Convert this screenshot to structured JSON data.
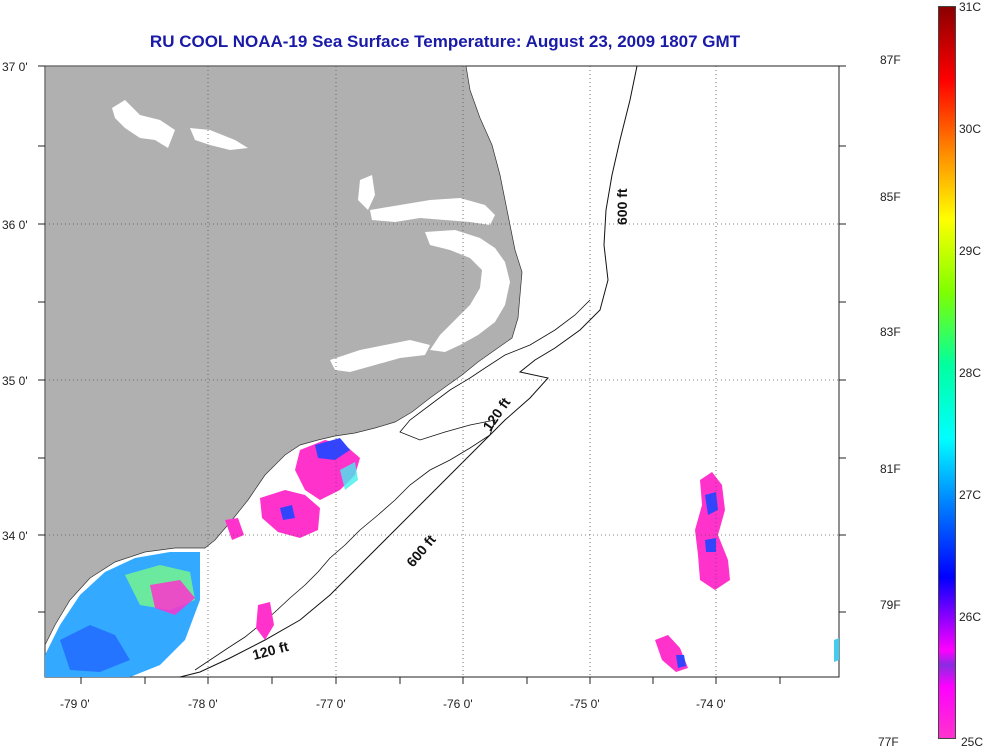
{
  "title": "RU COOL  NOAA-19  Sea Surface Temperature:  August 23, 2009 1807 GMT",
  "map": {
    "lat_labels": [
      "37 0'",
      "36 0'",
      "35 0'",
      "34 0'"
    ],
    "lon_labels": [
      "-79 0'",
      "-78 0'",
      "-77 0'",
      "-76 0'",
      "-75 0'",
      "-74 0'"
    ],
    "contour_labels": {
      "c600_north": "600 ft",
      "c120_north": "120 ft",
      "c600_south": "600 ft",
      "c120_south": "120 ft"
    },
    "colors": {
      "land": "#b0b0b0",
      "ocean": "#ffffff",
      "grid": "#555555"
    }
  },
  "colorbar": {
    "celsius_labels": [
      "31C",
      "30C",
      "29C",
      "28C",
      "27C",
      "26C",
      "25C"
    ],
    "fahrenheit_labels": [
      "87F",
      "85F",
      "83F",
      "81F",
      "79F",
      "77F"
    ],
    "colors": [
      "#8b0000",
      "#ff0000",
      "#ff8c00",
      "#ffff00",
      "#7fff00",
      "#00ffa0",
      "#00ffff",
      "#0080ff",
      "#0000ff",
      "#ff00ff"
    ]
  }
}
